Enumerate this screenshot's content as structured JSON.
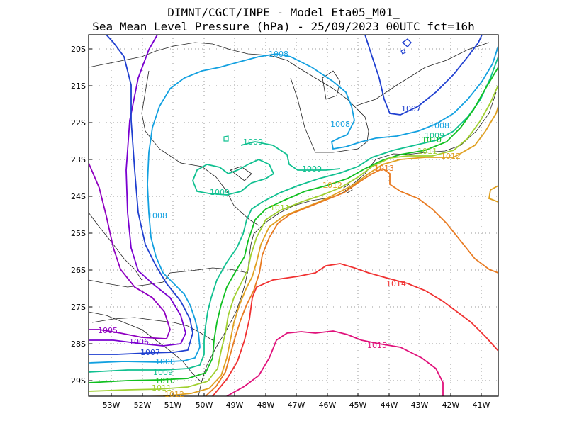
{
  "title_line1": "DIMNT/CGCT/INPE -  Model Eta05_M01_",
  "title_line2": "Sea Mean Level Pressure (hPa) - 25/09/2023 00UTC fct=16h",
  "lat_ticks": [
    "20S",
    "21S",
    "22S",
    "23S",
    "24S",
    "25S",
    "26S",
    "27S",
    "28S",
    "29S"
  ],
  "lon_ticks": [
    "53W",
    "52W",
    "51W",
    "50W",
    "49W",
    "48W",
    "47W",
    "46W",
    "45W",
    "44W",
    "43W",
    "42W",
    "41W"
  ],
  "contours": [
    {
      "label": "1005",
      "color": "#9000c0"
    },
    {
      "label": "1006",
      "color": "#7a00d0"
    },
    {
      "label": "1007",
      "color": "#1f3fd0"
    },
    {
      "label": "1008",
      "color": "#12a0e0"
    },
    {
      "label": "1009",
      "color": "#10c090"
    },
    {
      "label": "1010",
      "color": "#10c020"
    },
    {
      "label": "1011",
      "color": "#a0d030"
    },
    {
      "label": "1012",
      "color": "#e0a020"
    },
    {
      "label": "1013",
      "color": "#e87a20"
    },
    {
      "label": "1014",
      "color": "#f03030"
    },
    {
      "label": "1015",
      "color": "#e0107a"
    }
  ]
}
